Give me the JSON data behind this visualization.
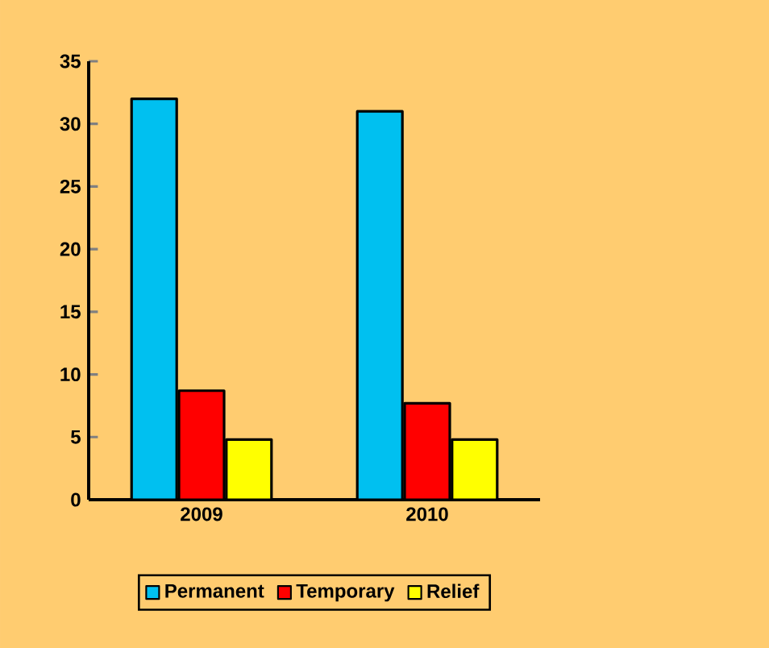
{
  "chart_data": {
    "type": "bar",
    "categories": [
      "2009",
      "2010"
    ],
    "series": [
      {
        "name": "Permanent",
        "color": "#00c0f0",
        "values": [
          32,
          31
        ]
      },
      {
        "name": "Temporary",
        "color": "#ff0000",
        "values": [
          8.7,
          7.7
        ]
      },
      {
        "name": "Relief",
        "color": "#ffff00",
        "values": [
          4.8,
          4.8
        ]
      }
    ],
    "ylim": [
      0,
      35
    ],
    "yticks": [
      0,
      5,
      10,
      15,
      20,
      25,
      30,
      35
    ],
    "grid": false,
    "legend": "bottom"
  }
}
